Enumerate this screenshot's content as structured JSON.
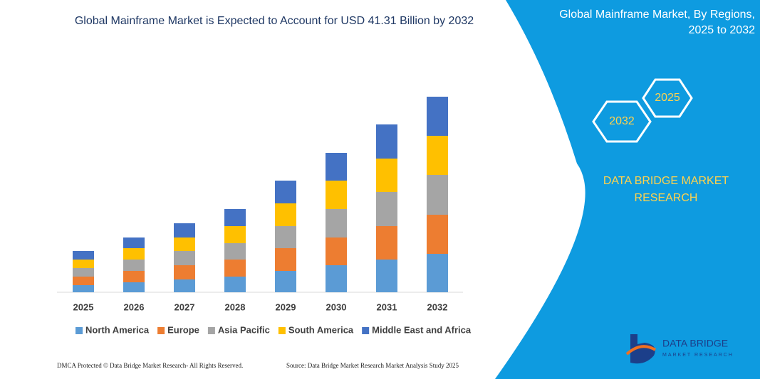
{
  "chart_data": {
    "type": "bar",
    "stacked": true,
    "title": "Global Mainframe Market is Expected to Account for USD 41.31 Billion by 2032",
    "categories": [
      "2025",
      "2026",
      "2027",
      "2028",
      "2029",
      "2030",
      "2031",
      "2032"
    ],
    "series": [
      {
        "name": "North America",
        "color": "#5b9bd5",
        "values": [
          10,
          14,
          18,
          22,
          30,
          38,
          46,
          54
        ]
      },
      {
        "name": "Europe",
        "color": "#ed7d31",
        "values": [
          12,
          16,
          20,
          24,
          32,
          39,
          47,
          55
        ]
      },
      {
        "name": "Asia Pacific",
        "color": "#a5a5a5",
        "values": [
          12,
          16,
          20,
          23,
          31,
          40,
          48,
          56
        ]
      },
      {
        "name": "South America",
        "color": "#ffc000",
        "values": [
          12,
          16,
          19,
          24,
          32,
          40,
          47,
          55
        ]
      },
      {
        "name": "Middle East and Africa",
        "color": "#4472c4",
        "values": [
          12,
          15,
          20,
          24,
          32,
          39,
          48,
          55
        ]
      }
    ],
    "ylim": [
      0,
      300
    ],
    "legend": "bottom"
  },
  "panel": {
    "title": "Global Mainframe Market, By Regions, 2025 to 2032",
    "hexagons": [
      "2025",
      "2032"
    ],
    "brand": "DATA BRIDGE MARKET RESEARCH"
  },
  "logo": {
    "name": "DATA BRIDGE",
    "tagline": "MARKET RESEARCH"
  },
  "footer": {
    "left": "DMCA Protected © Data Bridge Market Research- All Rights Reserved.",
    "right": "Source: Data Bridge Market Research Market Analysis Study 2025"
  }
}
